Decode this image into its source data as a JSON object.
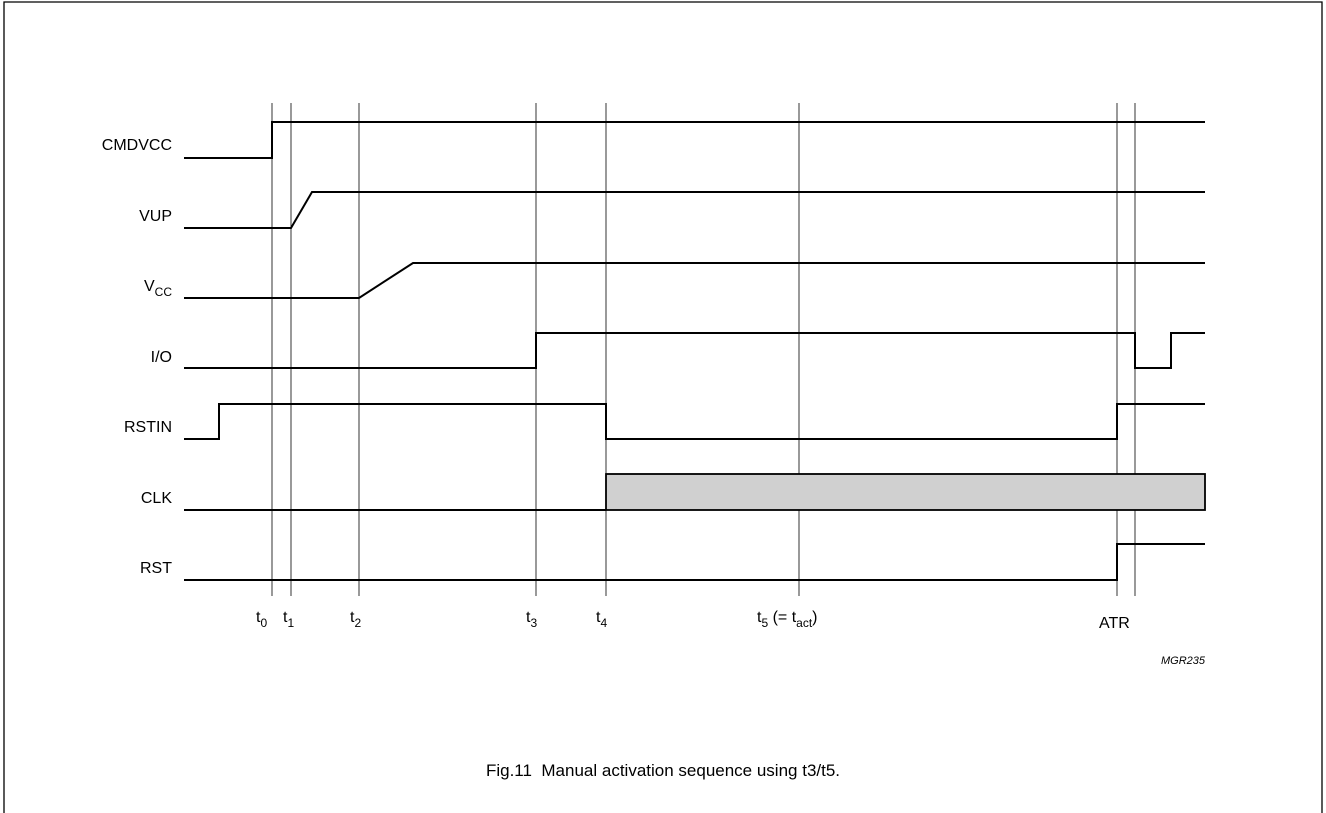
{
  "figure": {
    "caption": "Fig.11  Manual activation sequence using t3/t5.",
    "reference_code": "MGR235"
  },
  "signals": [
    {
      "id": "cmdvcc",
      "label": "CMDVCC"
    },
    {
      "id": "vup",
      "label": "VUP"
    },
    {
      "id": "vcc",
      "label": "V",
      "label_sub": "CC"
    },
    {
      "id": "io",
      "label": "I/O"
    },
    {
      "id": "rstin",
      "label": "RSTIN"
    },
    {
      "id": "clk",
      "label": "CLK"
    },
    {
      "id": "rst",
      "label": "RST"
    }
  ],
  "time_markers": [
    {
      "id": "t0",
      "base": "t",
      "sub": "0",
      "suffix": ""
    },
    {
      "id": "t1",
      "base": "t",
      "sub": "1",
      "suffix": ""
    },
    {
      "id": "t2",
      "base": "t",
      "sub": "2",
      "suffix": ""
    },
    {
      "id": "t3",
      "base": "t",
      "sub": "3",
      "suffix": ""
    },
    {
      "id": "t4",
      "base": "t",
      "sub": "4",
      "suffix": ""
    },
    {
      "id": "t5",
      "base": "t",
      "sub": "5",
      "suffix": " (= t",
      "sub2": "act",
      "suffix2": ")"
    },
    {
      "id": "atr",
      "base": "ATR",
      "sub": "",
      "suffix": ""
    }
  ],
  "colors": {
    "line": "#000000",
    "clk_fill": "#d0d0d0",
    "frame": "#000000"
  }
}
